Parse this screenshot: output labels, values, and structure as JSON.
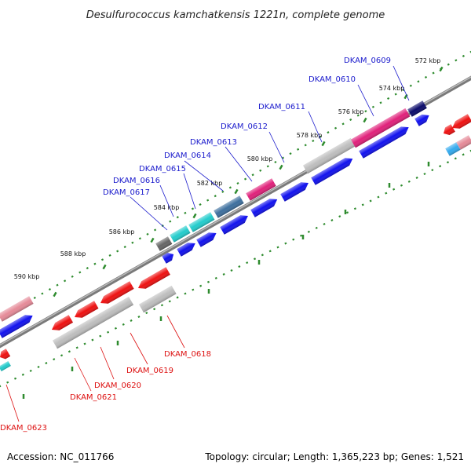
{
  "title": "Desulfurococcus kamchatkensis 1221n, complete genome",
  "footer": {
    "accession": "Accession: NC_011766",
    "stats": "Topology: circular; Length: 1,365,223 bp; Genes: 1,521"
  },
  "colors": {
    "forward_label": "#1a1acc",
    "reverse_label": "#dd1111",
    "tick_mark": "#2e8b2e",
    "backbone": "#7a7a7a",
    "gene_blue": "#1111ee",
    "gene_red": "#ee1111",
    "gene_grey": "#bdbdbd",
    "gene_pink": "#e0207a",
    "gene_cyan": "#22cccc",
    "gene_steel": "#3d6f9e",
    "gene_navy": "#0a0a6a",
    "gene_darkgrey": "#666666",
    "gene_lightblue": "#33aaee"
  },
  "ticks": [
    {
      "label": "572 kbp"
    },
    {
      "label": "574 kbp"
    },
    {
      "label": "576 kbp"
    },
    {
      "label": "578 kbp"
    },
    {
      "label": "580 kbp"
    },
    {
      "label": "582 kbp"
    },
    {
      "label": "584 kbp"
    },
    {
      "label": "586 kbp"
    },
    {
      "label": "588 kbp"
    },
    {
      "label": "590 kbp"
    }
  ],
  "forward_labels": [
    {
      "label": "DKAM_0609"
    },
    {
      "label": "DKAM_0610"
    },
    {
      "label": "DKAM_0611"
    },
    {
      "label": "DKAM_0612"
    },
    {
      "label": "DKAM_0613"
    },
    {
      "label": "DKAM_0614"
    },
    {
      "label": "DKAM_0615"
    },
    {
      "label": "DKAM_0616"
    },
    {
      "label": "DKAM_0617"
    }
  ],
  "reverse_labels": [
    {
      "label": "DKAM_0618"
    },
    {
      "label": "DKAM_0619"
    },
    {
      "label": "DKAM_0620"
    },
    {
      "label": "DKAM_0621"
    },
    {
      "label": "DKAM_0623"
    }
  ]
}
